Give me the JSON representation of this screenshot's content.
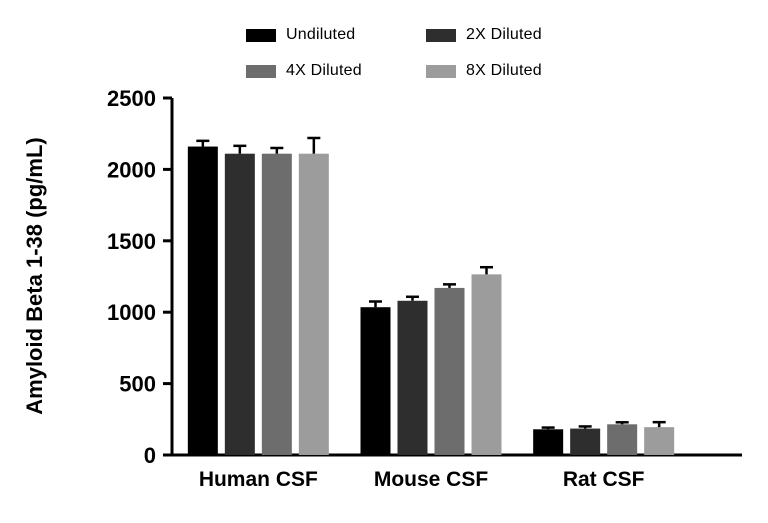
{
  "chart_data": {
    "type": "bar",
    "title": "",
    "ylabel": "Amyloid Beta 1-38 (pg/mL)",
    "xlabel": "",
    "ylim": [
      0,
      2500
    ],
    "yticks": [
      0,
      500,
      1000,
      1500,
      2000,
      2500
    ],
    "grid": false,
    "legend_position": "top",
    "categories": [
      "Human CSF",
      "Mouse CSF",
      "Rat CSF"
    ],
    "series": [
      {
        "name": "Undiluted",
        "color": "#000000",
        "values": [
          2160,
          1035,
          180
        ],
        "errors": [
          40,
          40,
          12
        ]
      },
      {
        "name": "2X Diluted",
        "color": "#2e2e2e",
        "values": [
          2110,
          1080,
          185
        ],
        "errors": [
          55,
          28,
          15
        ]
      },
      {
        "name": "4X Diluted",
        "color": "#6d6d6d",
        "values": [
          2110,
          1170,
          215
        ],
        "errors": [
          40,
          25,
          14
        ]
      },
      {
        "name": "8X Diluted",
        "color": "#9c9c9c",
        "values": [
          2110,
          1265,
          195
        ],
        "errors": [
          110,
          50,
          35
        ]
      }
    ],
    "colors": {
      "axis": "#000000",
      "error_bar": "#000000",
      "background": "#ffffff"
    }
  }
}
